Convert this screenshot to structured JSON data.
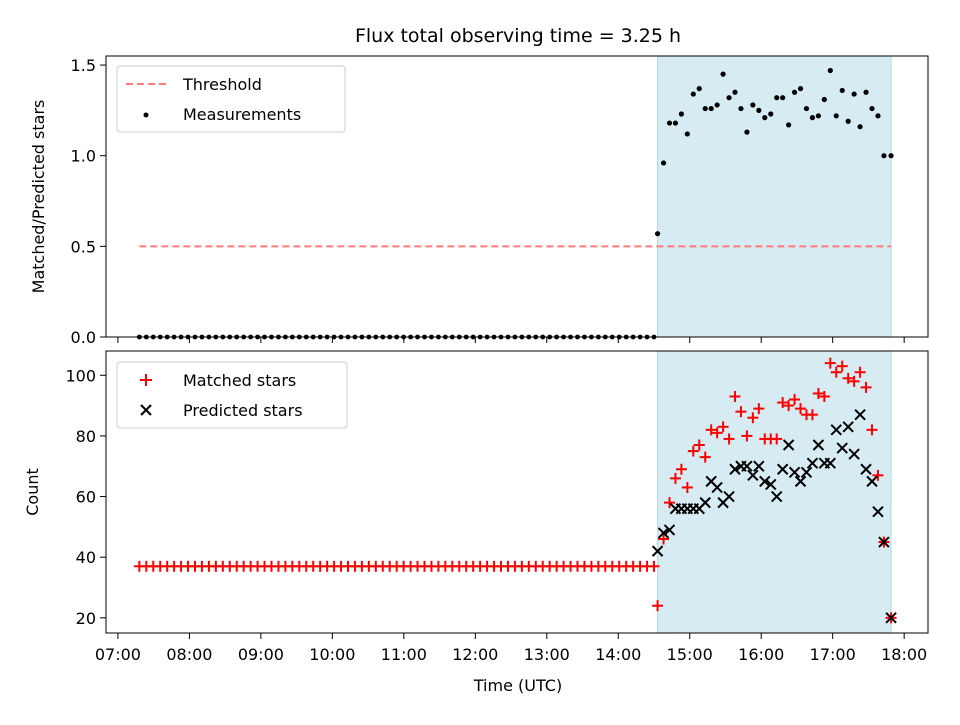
{
  "figure": {
    "title": "Flux total observing time = 3.25 h",
    "xlabel": "Time (UTC)"
  },
  "colors": {
    "threshold": "#ff7a7a",
    "measurements": "#000000",
    "matched": "#ff0000",
    "predicted": "#000000",
    "span": "#add8e6"
  },
  "chart_data": [
    {
      "type": "scatter",
      "panel": "top",
      "title": "Flux total observing time = 3.25 h",
      "ylabel": "Matched/Predicted stars",
      "xlabel": "",
      "x_ticks": [
        "07:00",
        "08:00",
        "09:00",
        "10:00",
        "11:00",
        "12:00",
        "13:00",
        "14:00",
        "15:00",
        "16:00",
        "17:00",
        "18:00"
      ],
      "y_ticks": [
        "0.0",
        "0.5",
        "1.0",
        "1.5"
      ],
      "xlim": [
        "06:50",
        "18:20"
      ],
      "ylim": [
        0,
        1.55
      ],
      "grid": false,
      "legend_position": "top-left",
      "shaded_span": [
        "14:33",
        "17:49"
      ],
      "threshold": {
        "name": "Threshold",
        "value": 0.5,
        "x_range": [
          "07:18",
          "17:49"
        ]
      },
      "measurements": {
        "name": "Measurements",
        "zero_range": [
          "07:18",
          "14:30"
        ],
        "zero_count": 75,
        "points": [
          [
            "14:33",
            0.57
          ],
          [
            "14:38",
            0.96
          ],
          [
            "14:43",
            1.18
          ],
          [
            "14:48",
            1.18
          ],
          [
            "14:53",
            1.23
          ],
          [
            "14:58",
            1.12
          ],
          [
            "15:03",
            1.34
          ],
          [
            "15:08",
            1.37
          ],
          [
            "15:13",
            1.26
          ],
          [
            "15:18",
            1.26
          ],
          [
            "15:23",
            1.28
          ],
          [
            "15:28",
            1.45
          ],
          [
            "15:33",
            1.32
          ],
          [
            "15:38",
            1.35
          ],
          [
            "15:43",
            1.26
          ],
          [
            "15:48",
            1.13
          ],
          [
            "15:53",
            1.28
          ],
          [
            "15:58",
            1.25
          ],
          [
            "16:03",
            1.21
          ],
          [
            "16:08",
            1.23
          ],
          [
            "16:13",
            1.32
          ],
          [
            "16:18",
            1.32
          ],
          [
            "16:23",
            1.17
          ],
          [
            "16:28",
            1.35
          ],
          [
            "16:33",
            1.37
          ],
          [
            "16:38",
            1.26
          ],
          [
            "16:43",
            1.21
          ],
          [
            "16:48",
            1.22
          ],
          [
            "16:53",
            1.31
          ],
          [
            "16:58",
            1.47
          ],
          [
            "17:03",
            1.22
          ],
          [
            "17:08",
            1.36
          ],
          [
            "17:13",
            1.19
          ],
          [
            "17:18",
            1.34
          ],
          [
            "17:23",
            1.16
          ],
          [
            "17:28",
            1.35
          ],
          [
            "17:33",
            1.26
          ],
          [
            "17:38",
            1.22
          ],
          [
            "17:43",
            1.0
          ],
          [
            "17:49",
            1.0
          ]
        ]
      }
    },
    {
      "type": "scatter",
      "panel": "bottom",
      "ylabel": "Count",
      "xlabel": "Time (UTC)",
      "x_ticks": [
        "07:00",
        "08:00",
        "09:00",
        "10:00",
        "11:00",
        "12:00",
        "13:00",
        "14:00",
        "15:00",
        "16:00",
        "17:00",
        "18:00"
      ],
      "y_ticks": [
        "20",
        "40",
        "60",
        "80",
        "100"
      ],
      "xlim": [
        "06:50",
        "18:20"
      ],
      "ylim": [
        15,
        108
      ],
      "grid": false,
      "legend_position": "top-left",
      "shaded_span": [
        "14:33",
        "17:49"
      ],
      "series": [
        {
          "name": "Matched stars",
          "marker": "plus",
          "constant_run": {
            "value": 37,
            "range": [
              "07:18",
              "14:30"
            ],
            "count": 75
          },
          "points": [
            [
              "14:33",
              24
            ],
            [
              "14:38",
              46
            ],
            [
              "14:43",
              58
            ],
            [
              "14:48",
              66
            ],
            [
              "14:53",
              69
            ],
            [
              "14:58",
              63
            ],
            [
              "15:03",
              75
            ],
            [
              "15:08",
              77
            ],
            [
              "15:13",
              73
            ],
            [
              "15:18",
              82
            ],
            [
              "15:23",
              81
            ],
            [
              "15:28",
              83
            ],
            [
              "15:33",
              79
            ],
            [
              "15:38",
              93
            ],
            [
              "15:43",
              88
            ],
            [
              "15:48",
              80
            ],
            [
              "15:53",
              86
            ],
            [
              "15:58",
              89
            ],
            [
              "16:03",
              79
            ],
            [
              "16:08",
              79
            ],
            [
              "16:13",
              79
            ],
            [
              "16:18",
              91
            ],
            [
              "16:23",
              90
            ],
            [
              "16:28",
              92
            ],
            [
              "16:33",
              89
            ],
            [
              "16:38",
              87
            ],
            [
              "16:43",
              87
            ],
            [
              "16:48",
              94
            ],
            [
              "16:53",
              93
            ],
            [
              "16:58",
              104
            ],
            [
              "17:03",
              101
            ],
            [
              "17:08",
              103
            ],
            [
              "17:13",
              99
            ],
            [
              "17:18",
              98
            ],
            [
              "17:23",
              101
            ],
            [
              "17:28",
              96
            ],
            [
              "17:33",
              82
            ],
            [
              "17:38",
              67
            ],
            [
              "17:43",
              45
            ],
            [
              "17:49",
              20
            ]
          ]
        },
        {
          "name": "Predicted stars",
          "marker": "x",
          "points": [
            [
              "14:33",
              42
            ],
            [
              "14:38",
              48
            ],
            [
              "14:43",
              49
            ],
            [
              "14:48",
              56
            ],
            [
              "14:53",
              56
            ],
            [
              "14:58",
              56
            ],
            [
              "15:03",
              56
            ],
            [
              "15:08",
              56
            ],
            [
              "15:13",
              58
            ],
            [
              "15:18",
              65
            ],
            [
              "15:23",
              63
            ],
            [
              "15:28",
              58
            ],
            [
              "15:33",
              60
            ],
            [
              "15:38",
              69
            ],
            [
              "15:43",
              70
            ],
            [
              "15:48",
              70
            ],
            [
              "15:53",
              67
            ],
            [
              "15:58",
              70
            ],
            [
              "16:03",
              65
            ],
            [
              "16:08",
              64
            ],
            [
              "16:13",
              60
            ],
            [
              "16:18",
              69
            ],
            [
              "16:23",
              77
            ],
            [
              "16:28",
              68
            ],
            [
              "16:33",
              65
            ],
            [
              "16:38",
              68
            ],
            [
              "16:43",
              71
            ],
            [
              "16:48",
              77
            ],
            [
              "16:53",
              71
            ],
            [
              "16:58",
              71
            ],
            [
              "17:03",
              82
            ],
            [
              "17:08",
              76
            ],
            [
              "17:13",
              83
            ],
            [
              "17:18",
              74
            ],
            [
              "17:23",
              87
            ],
            [
              "17:28",
              69
            ],
            [
              "17:33",
              65
            ],
            [
              "17:38",
              55
            ],
            [
              "17:43",
              45
            ],
            [
              "17:49",
              20
            ]
          ]
        }
      ]
    }
  ]
}
